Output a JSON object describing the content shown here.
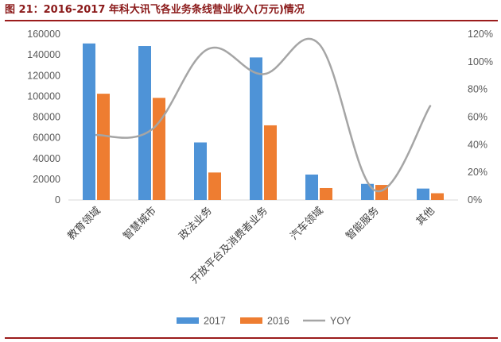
{
  "title": "图 21：2016-2017 年科大讯飞各业务条线营业收入(万元)情况",
  "chart_data": {
    "type": "bar",
    "title": "图 21：2016-2017 年科大讯飞各业务条线营业收入(万元)情况",
    "categories": [
      "教育领域",
      "智慧城市",
      "政法业务",
      "开放平台及消费者业务",
      "汽车领域",
      "智能服务",
      "其他"
    ],
    "series": [
      {
        "name": "2017",
        "type": "bar",
        "axis": "left",
        "color": "#4e93d7",
        "values": [
          151000,
          148500,
          55500,
          137500,
          24500,
          15500,
          11000
        ]
      },
      {
        "name": "2016",
        "type": "bar",
        "axis": "right_none",
        "color": "#ee7d31",
        "values": [
          102500,
          98500,
          26500,
          72000,
          11500,
          14500,
          6500
        ]
      },
      {
        "name": "YOY",
        "type": "line",
        "axis": "right",
        "color": "#a5a5a5",
        "values": [
          0.47,
          0.51,
          1.09,
          0.91,
          1.13,
          0.07,
          0.68
        ]
      }
    ],
    "left_axis": {
      "ylim": [
        0,
        160000
      ],
      "ticks": [
        "0",
        "20000",
        "40000",
        "60000",
        "80000",
        "100000",
        "120000",
        "140000",
        "160000"
      ]
    },
    "right_axis": {
      "ylim": [
        0,
        1.2
      ],
      "ticks": [
        "0%",
        "20%",
        "40%",
        "60%",
        "80%",
        "100%",
        "120%"
      ]
    },
    "legend": {
      "position": "bottom",
      "entries": [
        "2017",
        "2016",
        "YOY"
      ]
    },
    "grid": false
  }
}
